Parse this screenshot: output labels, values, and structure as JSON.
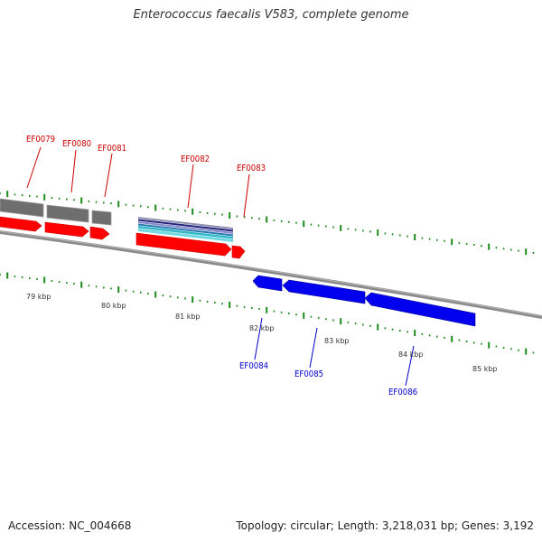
{
  "title": "Enterococcus faecalis V583, complete genome",
  "footer": {
    "accession": "Accession: NC_004668",
    "stats": "Topology: circular; Length: 3,218,031 bp; Genes: 3,192"
  },
  "colors": {
    "forward_gene": "#ff0000",
    "reverse_gene": "#0000ee",
    "grey_feature": "#777777",
    "tick_green": "#1a8a1a",
    "label_red": "#cc0000",
    "label_blue": "#0000cc",
    "backbone": "#7a7a7a"
  },
  "ruler": {
    "labels": [
      {
        "kbp": 79,
        "text": "79 kbp"
      },
      {
        "kbp": 80,
        "text": "80 kbp"
      },
      {
        "kbp": 81,
        "text": "81 kbp"
      },
      {
        "kbp": 82,
        "text": "82 kbp"
      },
      {
        "kbp": 83,
        "text": "83 kbp"
      },
      {
        "kbp": 84,
        "text": "84 kbp"
      },
      {
        "kbp": 85,
        "text": "85 kbp"
      }
    ]
  },
  "genes": [
    {
      "name": "EF0079",
      "strand": "+"
    },
    {
      "name": "EF0080",
      "strand": "+"
    },
    {
      "name": "EF0081",
      "strand": "+"
    },
    {
      "name": "EF0082",
      "strand": "+"
    },
    {
      "name": "EF0083",
      "strand": "+"
    },
    {
      "name": "EF0084",
      "strand": "-"
    },
    {
      "name": "EF0085",
      "strand": "-"
    },
    {
      "name": "EF0086",
      "strand": "-"
    }
  ]
}
